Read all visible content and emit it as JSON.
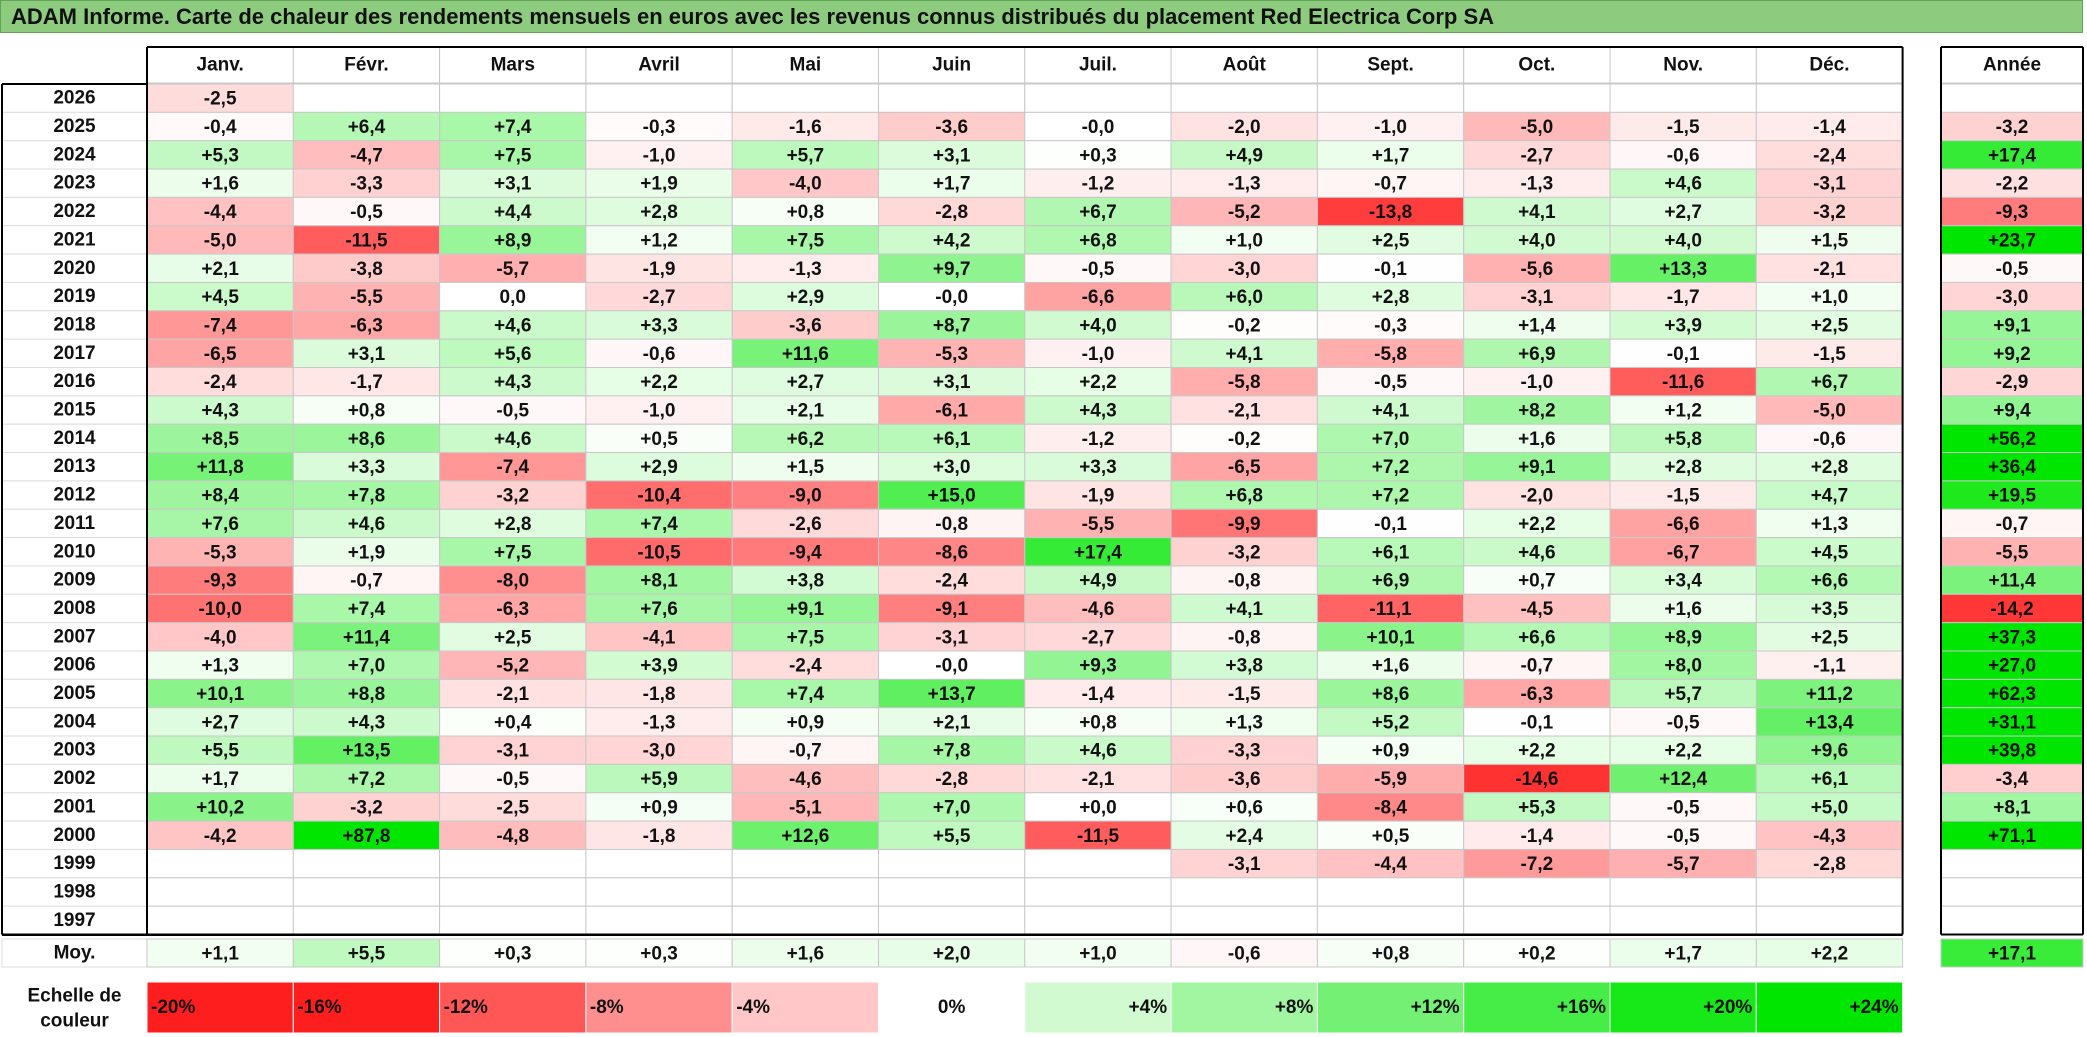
{
  "title": "ADAM Informe. Carte de chaleur des rendements mensuels en euros avec les revenus connus distribués du placement Red Electrica Corp SA",
  "chart_data": {
    "type": "heatmap",
    "months": [
      "Janv.",
      "Févr.",
      "Mars",
      "Avril",
      "Mai",
      "Juin",
      "Juil.",
      "Août",
      "Sept.",
      "Oct.",
      "Nov.",
      "Déc."
    ],
    "year_header": "Année",
    "rows": [
      {
        "year": "2026",
        "values": [
          "-2,5",
          "",
          "",
          "",
          "",
          "",
          "",
          "",
          "",
          "",
          "",
          ""
        ],
        "annual": ""
      },
      {
        "year": "2025",
        "values": [
          "-0,4",
          "+6,4",
          "+7,4",
          "-0,3",
          "-1,6",
          "-3,6",
          "-0,0",
          "-2,0",
          "-1,0",
          "-5,0",
          "-1,5",
          "-1,4"
        ],
        "annual": "-3,2"
      },
      {
        "year": "2024",
        "values": [
          "+5,3",
          "-4,7",
          "+7,5",
          "-1,0",
          "+5,7",
          "+3,1",
          "+0,3",
          "+4,9",
          "+1,7",
          "-2,7",
          "-0,6",
          "-2,4"
        ],
        "annual": "+17,4"
      },
      {
        "year": "2023",
        "values": [
          "+1,6",
          "-3,3",
          "+3,1",
          "+1,9",
          "-4,0",
          "+1,7",
          "-1,2",
          "-1,3",
          "-0,7",
          "-1,3",
          "+4,6",
          "-3,1"
        ],
        "annual": "-2,2"
      },
      {
        "year": "2022",
        "values": [
          "-4,4",
          "-0,5",
          "+4,4",
          "+2,8",
          "+0,8",
          "-2,8",
          "+6,7",
          "-5,2",
          "-13,8",
          "+4,1",
          "+2,7",
          "-3,2"
        ],
        "annual": "-9,3"
      },
      {
        "year": "2021",
        "values": [
          "-5,0",
          "-11,5",
          "+8,9",
          "+1,2",
          "+7,5",
          "+4,2",
          "+6,8",
          "+1,0",
          "+2,5",
          "+4,0",
          "+4,0",
          "+1,5"
        ],
        "annual": "+23,7"
      },
      {
        "year": "2020",
        "values": [
          "+2,1",
          "-3,8",
          "-5,7",
          "-1,9",
          "-1,3",
          "+9,7",
          "-0,5",
          "-3,0",
          "-0,1",
          "-5,6",
          "+13,3",
          "-2,1"
        ],
        "annual": "-0,5"
      },
      {
        "year": "2019",
        "values": [
          "+4,5",
          "-5,5",
          "0,0",
          "-2,7",
          "+2,9",
          "-0,0",
          "-6,6",
          "+6,0",
          "+2,8",
          "-3,1",
          "-1,7",
          "+1,0"
        ],
        "annual": "-3,0"
      },
      {
        "year": "2018",
        "values": [
          "-7,4",
          "-6,3",
          "+4,6",
          "+3,3",
          "-3,6",
          "+8,7",
          "+4,0",
          "-0,2",
          "-0,3",
          "+1,4",
          "+3,9",
          "+2,5"
        ],
        "annual": "+9,1"
      },
      {
        "year": "2017",
        "values": [
          "-6,5",
          "+3,1",
          "+5,6",
          "-0,6",
          "+11,6",
          "-5,3",
          "-1,0",
          "+4,1",
          "-5,8",
          "+6,9",
          "-0,1",
          "-1,5"
        ],
        "annual": "+9,2"
      },
      {
        "year": "2016",
        "values": [
          "-2,4",
          "-1,7",
          "+4,3",
          "+2,2",
          "+2,7",
          "+3,1",
          "+2,2",
          "-5,8",
          "-0,5",
          "-1,0",
          "-11,6",
          "+6,7"
        ],
        "annual": "-2,9"
      },
      {
        "year": "2015",
        "values": [
          "+4,3",
          "+0,8",
          "-0,5",
          "-1,0",
          "+2,1",
          "-6,1",
          "+4,3",
          "-2,1",
          "+4,1",
          "+8,2",
          "+1,2",
          "-5,0"
        ],
        "annual": "+9,4"
      },
      {
        "year": "2014",
        "values": [
          "+8,5",
          "+8,6",
          "+4,6",
          "+0,5",
          "+6,2",
          "+6,1",
          "-1,2",
          "-0,2",
          "+7,0",
          "+1,6",
          "+5,8",
          "-0,6"
        ],
        "annual": "+56,2"
      },
      {
        "year": "2013",
        "values": [
          "+11,8",
          "+3,3",
          "-7,4",
          "+2,9",
          "+1,5",
          "+3,0",
          "+3,3",
          "-6,5",
          "+7,2",
          "+9,1",
          "+2,8",
          "+2,8"
        ],
        "annual": "+36,4"
      },
      {
        "year": "2012",
        "values": [
          "+8,4",
          "+7,8",
          "-3,2",
          "-10,4",
          "-9,0",
          "+15,0",
          "-1,9",
          "+6,8",
          "+7,2",
          "-2,0",
          "-1,5",
          "+4,7"
        ],
        "annual": "+19,5"
      },
      {
        "year": "2011",
        "values": [
          "+7,6",
          "+4,6",
          "+2,8",
          "+7,4",
          "-2,6",
          "-0,8",
          "-5,5",
          "-9,9",
          "-0,1",
          "+2,2",
          "-6,6",
          "+1,3"
        ],
        "annual": "-0,7"
      },
      {
        "year": "2010",
        "values": [
          "-5,3",
          "+1,9",
          "+7,5",
          "-10,5",
          "-9,4",
          "-8,6",
          "+17,4",
          "-3,2",
          "+6,1",
          "+4,6",
          "-6,7",
          "+4,5"
        ],
        "annual": "-5,5"
      },
      {
        "year": "2009",
        "values": [
          "-9,3",
          "-0,7",
          "-8,0",
          "+8,1",
          "+3,8",
          "-2,4",
          "+4,9",
          "-0,8",
          "+6,9",
          "+0,7",
          "+3,4",
          "+6,6"
        ],
        "annual": "+11,4"
      },
      {
        "year": "2008",
        "values": [
          "-10,0",
          "+7,4",
          "-6,3",
          "+7,6",
          "+9,1",
          "-9,1",
          "-4,6",
          "+4,1",
          "-11,1",
          "-4,5",
          "+1,6",
          "+3,5"
        ],
        "annual": "-14,2"
      },
      {
        "year": "2007",
        "values": [
          "-4,0",
          "+11,4",
          "+2,5",
          "-4,1",
          "+7,5",
          "-3,1",
          "-2,7",
          "-0,8",
          "+10,1",
          "+6,6",
          "+8,9",
          "+2,5"
        ],
        "annual": "+37,3"
      },
      {
        "year": "2006",
        "values": [
          "+1,3",
          "+7,0",
          "-5,2",
          "+3,9",
          "-2,4",
          "-0,0",
          "+9,3",
          "+3,8",
          "+1,6",
          "-0,7",
          "+8,0",
          "-1,1"
        ],
        "annual": "+27,0"
      },
      {
        "year": "2005",
        "values": [
          "+10,1",
          "+8,8",
          "-2,1",
          "-1,8",
          "+7,4",
          "+13,7",
          "-1,4",
          "-1,5",
          "+8,6",
          "-6,3",
          "+5,7",
          "+11,2"
        ],
        "annual": "+62,3"
      },
      {
        "year": "2004",
        "values": [
          "+2,7",
          "+4,3",
          "+0,4",
          "-1,3",
          "+0,9",
          "+2,1",
          "+0,8",
          "+1,3",
          "+5,2",
          "-0,1",
          "-0,5",
          "+13,4"
        ],
        "annual": "+31,1"
      },
      {
        "year": "2003",
        "values": [
          "+5,5",
          "+13,5",
          "-3,1",
          "-3,0",
          "-0,7",
          "+7,8",
          "+4,6",
          "-3,3",
          "+0,9",
          "+2,2",
          "+2,2",
          "+9,6"
        ],
        "annual": "+39,8"
      },
      {
        "year": "2002",
        "values": [
          "+1,7",
          "+7,2",
          "-0,5",
          "+5,9",
          "-4,6",
          "-2,8",
          "-2,1",
          "-3,6",
          "-5,9",
          "-14,6",
          "+12,4",
          "+6,1"
        ],
        "annual": "-3,4"
      },
      {
        "year": "2001",
        "values": [
          "+10,2",
          "-3,2",
          "-2,5",
          "+0,9",
          "-5,1",
          "+7,0",
          "+0,0",
          "+0,6",
          "-8,4",
          "+5,3",
          "-0,5",
          "+5,0"
        ],
        "annual": "+8,1"
      },
      {
        "year": "2000",
        "values": [
          "-4,2",
          "+87,8",
          "-4,8",
          "-1,8",
          "+12,6",
          "+5,5",
          "-11,5",
          "+2,4",
          "+0,5",
          "-1,4",
          "-0,5",
          "-4,3"
        ],
        "annual": "+71,1"
      },
      {
        "year": "1999",
        "values": [
          "",
          "",
          "",
          "",
          "",
          "",
          "",
          "-3,1",
          "-4,4",
          "-7,2",
          "-5,7",
          "-2,8"
        ],
        "annual": ""
      },
      {
        "year": "1998",
        "values": [
          "",
          "",
          "",
          "",
          "",
          "",
          "",
          "",
          "",
          "",
          "",
          ""
        ],
        "annual": ""
      },
      {
        "year": "1997",
        "values": [
          "",
          "",
          "",
          "",
          "",
          "",
          "",
          "",
          "",
          "",
          "",
          ""
        ],
        "annual": ""
      }
    ],
    "average": {
      "label": "Moy.",
      "values": [
        "+1,1",
        "+5,5",
        "+0,3",
        "+0,3",
        "+1,6",
        "+2,0",
        "+1,0",
        "-0,6",
        "+0,8",
        "+0,2",
        "+1,7",
        "+2,2"
      ],
      "annual": "+17,1"
    },
    "scale": {
      "label_line1": "Echelle de",
      "label_line2": "couleur",
      "items": [
        "-20%",
        "-16%",
        "-12%",
        "-8%",
        "-4%",
        "0%",
        "+4%",
        "+8%",
        "+12%",
        "+16%",
        "+20%",
        "+24%"
      ]
    },
    "colors": {
      "negative": "#ff0000",
      "positive": "#00e000",
      "neutral": "#ffffff",
      "title_bg": "#8dcc7f"
    }
  }
}
